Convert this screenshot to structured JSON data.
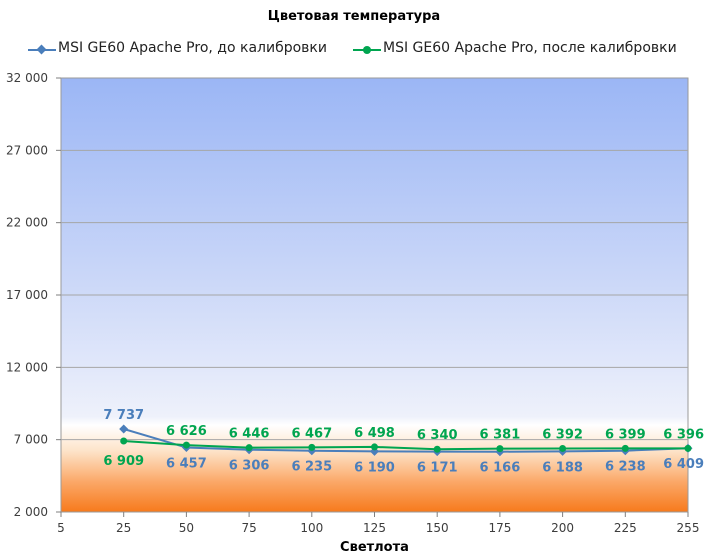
{
  "chart_data": {
    "type": "line",
    "title": "Цветовая температура",
    "xlabel": "Светлота",
    "ylabel": "",
    "x_ticks": [
      "5",
      "25",
      "50",
      "75",
      "100",
      "125",
      "150",
      "175",
      "200",
      "225",
      "255"
    ],
    "y_ticks": [
      "2 000",
      "7 000",
      "12 000",
      "17 000",
      "22 000",
      "27 000",
      "32 000"
    ],
    "ylim": [
      2000,
      32000
    ],
    "xlim": [
      5,
      255
    ],
    "grid": true,
    "legend_position": "top",
    "series": [
      {
        "name": "MSI GE60 Apache Pro, до калибровки",
        "color": "#4a7ebb",
        "marker": "diamond",
        "x": [
          25,
          50,
          75,
          100,
          125,
          150,
          175,
          200,
          225,
          255
        ],
        "values": [
          7737,
          6457,
          6306,
          6235,
          6190,
          6171,
          6166,
          6188,
          6238,
          6409
        ],
        "labels": [
          "7 737",
          "6 457",
          "6 306",
          "6 235",
          "6 190",
          "6 171",
          "6 166",
          "6 188",
          "6 238",
          "6 409"
        ]
      },
      {
        "name": "MSI GE60 Apache Pro, после калибровки",
        "color": "#00a550",
        "marker": "circle",
        "x": [
          25,
          50,
          75,
          100,
          125,
          150,
          175,
          200,
          225,
          255
        ],
        "values": [
          6909,
          6626,
          6446,
          6467,
          6498,
          6340,
          6381,
          6392,
          6399,
          6396
        ],
        "labels": [
          "6 909",
          "6 626",
          "6 446",
          "6 467",
          "6 498",
          "6 340",
          "6 381",
          "6 392",
          "6 399",
          "6 396"
        ]
      }
    ]
  }
}
